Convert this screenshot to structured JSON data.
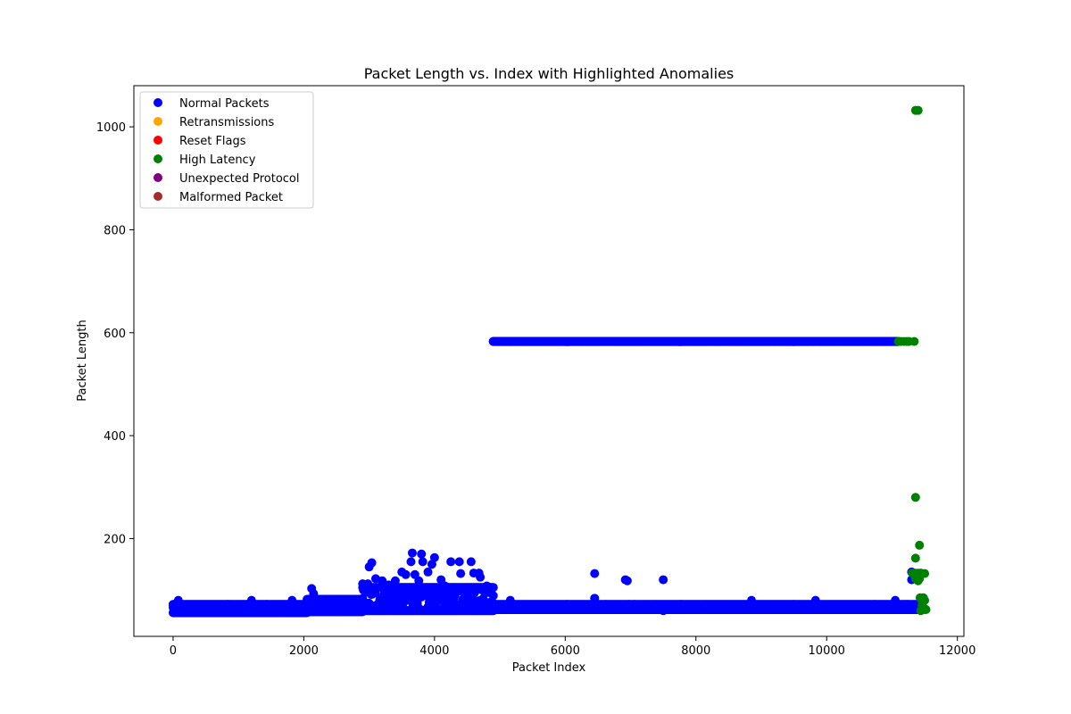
{
  "chart_data": {
    "type": "scatter",
    "title": "Packet Length vs. Index with Highlighted Anomalies",
    "xlabel": "Packet Index",
    "ylabel": "Packet Length",
    "xlim": [
      -600,
      12100
    ],
    "ylim": [
      10,
      1080
    ],
    "xticks": [
      0,
      2000,
      4000,
      6000,
      8000,
      10000,
      12000
    ],
    "yticks": [
      200,
      400,
      600,
      800,
      1000
    ],
    "grid": false,
    "legend_position": "top-left",
    "series": [
      {
        "name": "Normal Packets",
        "color": "#0000ff",
        "bands": [
          {
            "x0": 0,
            "x1": 2050,
            "y0": 56,
            "y1": 72
          },
          {
            "x0": 2050,
            "x1": 2900,
            "y0": 58,
            "y1": 82
          },
          {
            "x0": 2900,
            "x1": 4900,
            "y0": 60,
            "y1": 105
          },
          {
            "x0": 4900,
            "x1": 11450,
            "y0": 62,
            "y1": 72
          },
          {
            "x0": 4900,
            "x1": 11100,
            "y0": 583,
            "y1": 583
          }
        ],
        "points": [
          [
            0,
            72
          ],
          [
            80,
            80
          ],
          [
            1200,
            80
          ],
          [
            1820,
            80
          ],
          [
            2120,
            103
          ],
          [
            2150,
            93
          ],
          [
            2300,
            78
          ],
          [
            2400,
            78
          ],
          [
            2900,
            112
          ],
          [
            2980,
            112
          ],
          [
            3000,
            145
          ],
          [
            3040,
            153
          ],
          [
            3100,
            122
          ],
          [
            3200,
            118
          ],
          [
            3300,
            110
          ],
          [
            3400,
            118
          ],
          [
            3500,
            135
          ],
          [
            3560,
            130
          ],
          [
            3640,
            155
          ],
          [
            3660,
            172
          ],
          [
            3700,
            130
          ],
          [
            3760,
            118
          ],
          [
            3800,
            170
          ],
          [
            3820,
            155
          ],
          [
            3900,
            135
          ],
          [
            3960,
            150
          ],
          [
            4000,
            163
          ],
          [
            4100,
            120
          ],
          [
            4160,
            108
          ],
          [
            4250,
            155
          ],
          [
            4380,
            155
          ],
          [
            4400,
            132
          ],
          [
            4560,
            155
          ],
          [
            4600,
            133
          ],
          [
            4680,
            133
          ],
          [
            4700,
            125
          ],
          [
            4800,
            108
          ],
          [
            4860,
            105
          ],
          [
            5160,
            80
          ],
          [
            6450,
            132
          ],
          [
            6450,
            84
          ],
          [
            6920,
            120
          ],
          [
            6950,
            118
          ],
          [
            7500,
            120
          ],
          [
            7500,
            60
          ],
          [
            8850,
            80
          ],
          [
            9830,
            80
          ],
          [
            11050,
            80
          ],
          [
            11300,
            135
          ],
          [
            11300,
            120
          ],
          [
            11330,
            62
          ],
          [
            11380,
            62
          ],
          [
            11420,
            62
          ]
        ]
      },
      {
        "name": "Retransmissions",
        "color": "#ffa500",
        "points": []
      },
      {
        "name": "Reset Flags",
        "color": "#ff0000",
        "points": []
      },
      {
        "name": "High Latency",
        "color": "#008000",
        "points": [
          [
            11360,
            1032
          ],
          [
            11400,
            1032
          ],
          [
            11100,
            583
          ],
          [
            11140,
            583
          ],
          [
            11180,
            583
          ],
          [
            11220,
            583
          ],
          [
            11260,
            583
          ],
          [
            11340,
            583
          ],
          [
            11360,
            280
          ],
          [
            11420,
            187
          ],
          [
            11360,
            162
          ],
          [
            11310,
            133
          ],
          [
            11350,
            133
          ],
          [
            11380,
            128
          ],
          [
            11400,
            133
          ],
          [
            11440,
            133
          ],
          [
            11500,
            132
          ],
          [
            11360,
            122
          ],
          [
            11400,
            118
          ],
          [
            11420,
            122
          ],
          [
            11430,
            85
          ],
          [
            11450,
            82
          ],
          [
            11480,
            85
          ],
          [
            11500,
            80
          ],
          [
            11460,
            70
          ],
          [
            11490,
            65
          ],
          [
            11500,
            62
          ],
          [
            11520,
            62
          ],
          [
            11440,
            60
          ]
        ]
      },
      {
        "name": "Unexpected Protocol",
        "color": "#800080",
        "points": []
      },
      {
        "name": "Malformed Packet",
        "color": "#a52a2a",
        "points": []
      }
    ]
  }
}
